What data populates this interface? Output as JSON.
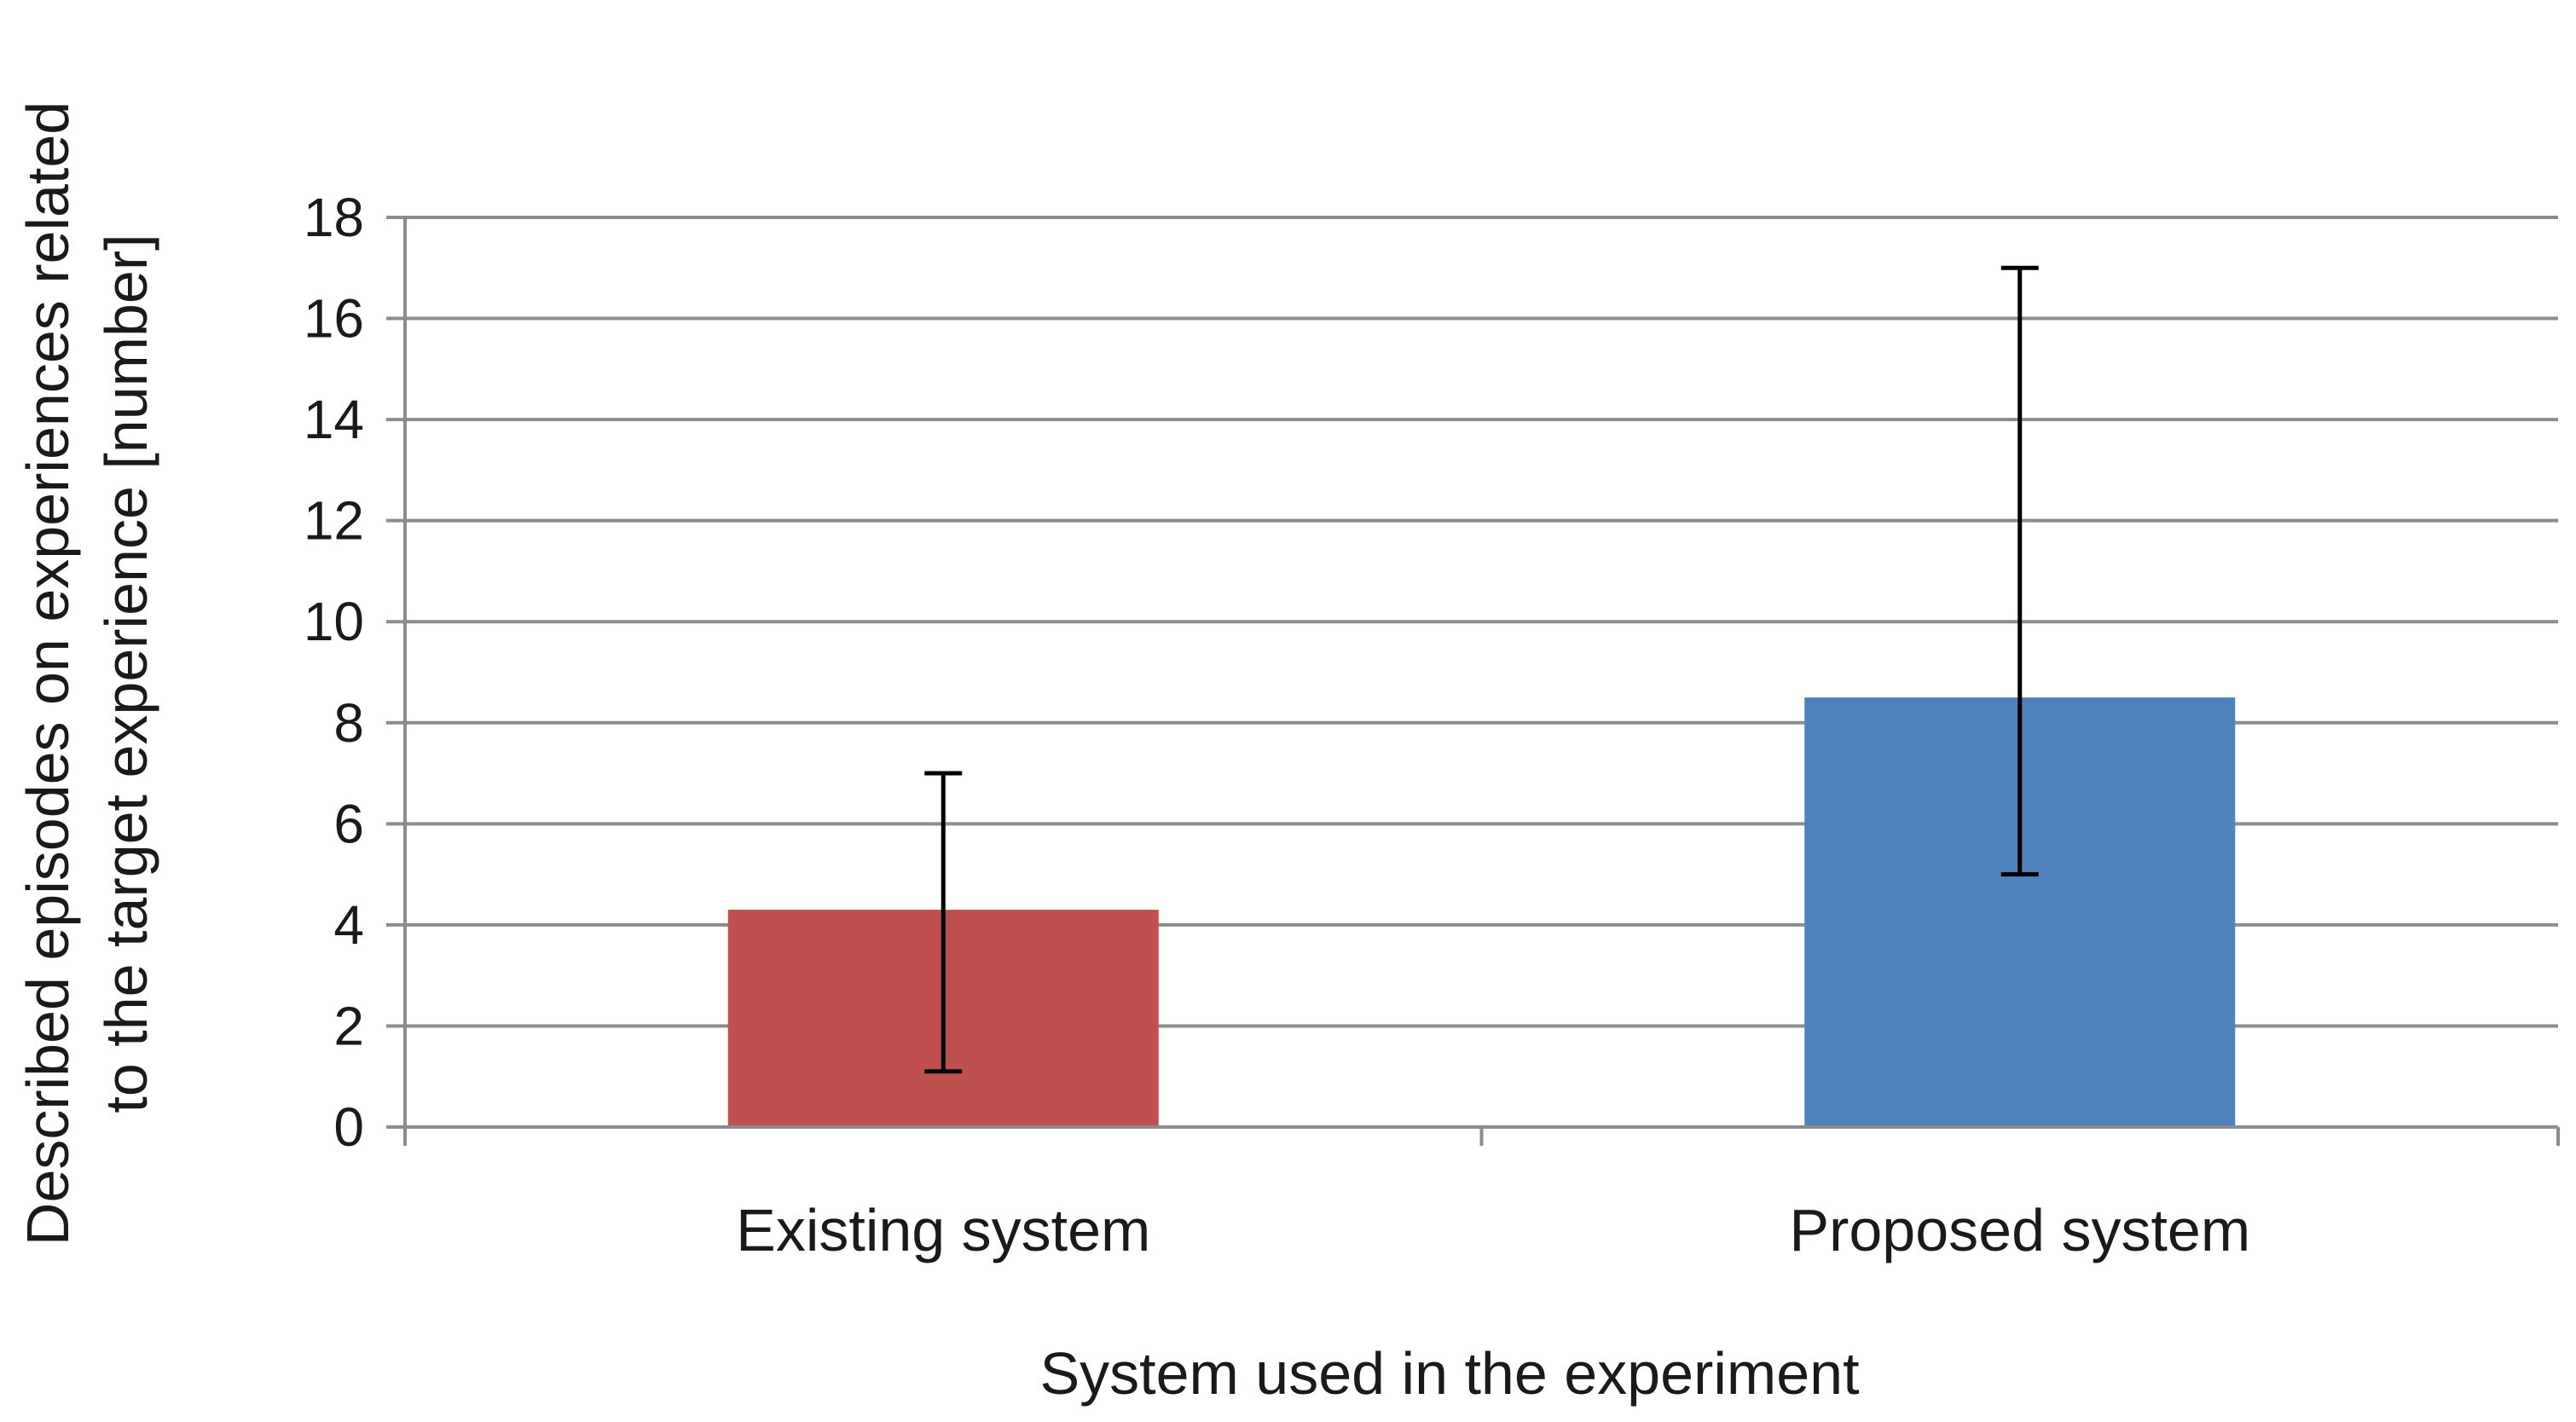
{
  "chart_data": {
    "type": "bar",
    "title": "",
    "xlabel": "System used in the experiment",
    "ylabel_lines": [
      "Described episodes on experiences related",
      "to the target experience [number]"
    ],
    "categories": [
      "Existing system",
      "Proposed system"
    ],
    "series": [
      {
        "values": [
          4.3,
          8.5
        ],
        "error_low": [
          1.1,
          5.0
        ],
        "error_high": [
          7.0,
          17.0
        ]
      }
    ],
    "bar_colors": [
      "#c0504d",
      "#4f81bd"
    ],
    "ylim": [
      0,
      18
    ],
    "yticks": [
      0,
      2,
      4,
      6,
      8,
      10,
      12,
      14,
      16,
      18
    ],
    "grid": true,
    "legend": "none"
  }
}
